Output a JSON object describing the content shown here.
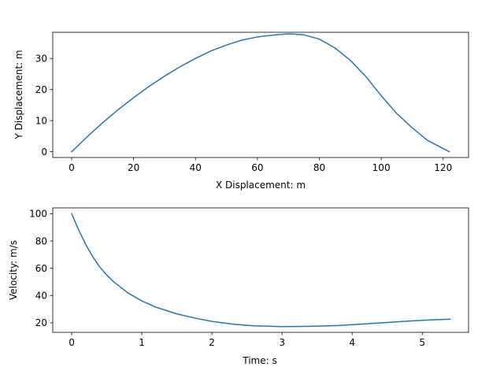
{
  "chart_data": [
    {
      "type": "line",
      "xlabel": "X Displacement: m",
      "ylabel": "Y Displacement: m",
      "xlim": [
        -6.1,
        128.2
      ],
      "ylim": [
        -1.85,
        38.4
      ],
      "xticks": [
        0,
        20,
        40,
        60,
        80,
        100,
        120
      ],
      "yticks": [
        0,
        10,
        20,
        30
      ],
      "color": "#1f77b4",
      "x": [
        0,
        5,
        10,
        15,
        20,
        25,
        30,
        35,
        40,
        45,
        50,
        55,
        60,
        65,
        70,
        75,
        80,
        85,
        90,
        95,
        100,
        105,
        110,
        115,
        122
      ],
      "y": [
        0,
        4.8,
        9.3,
        13.5,
        17.4,
        21.0,
        24.3,
        27.3,
        30.0,
        32.4,
        34.3,
        35.9,
        36.9,
        37.5,
        37.9,
        37.6,
        36.2,
        33.4,
        29.4,
        24.2,
        18.0,
        12.3,
        7.7,
        3.6,
        0
      ]
    },
    {
      "type": "line",
      "xlabel": "Time: s",
      "ylabel": "Velocity: m/s",
      "xlim": [
        -0.27,
        5.66
      ],
      "ylim": [
        13.0,
        104.3
      ],
      "xticks": [
        0,
        1,
        2,
        3,
        4,
        5
      ],
      "yticks": [
        20,
        40,
        60,
        80,
        100
      ],
      "color": "#1f77b4",
      "x": [
        0,
        0.1,
        0.2,
        0.3,
        0.4,
        0.5,
        0.6,
        0.8,
        1.0,
        1.2,
        1.5,
        1.8,
        2.0,
        2.3,
        2.6,
        3.0,
        3.4,
        3.8,
        4.2,
        4.6,
        5.0,
        5.4
      ],
      "y": [
        100,
        88.0,
        77.5,
        68.5,
        61.0,
        55.0,
        50.0,
        42.0,
        36.0,
        31.5,
        26.5,
        23.0,
        21.0,
        19.0,
        17.8,
        17.2,
        17.4,
        18.0,
        19.2,
        20.6,
        21.8,
        22.7
      ]
    }
  ]
}
